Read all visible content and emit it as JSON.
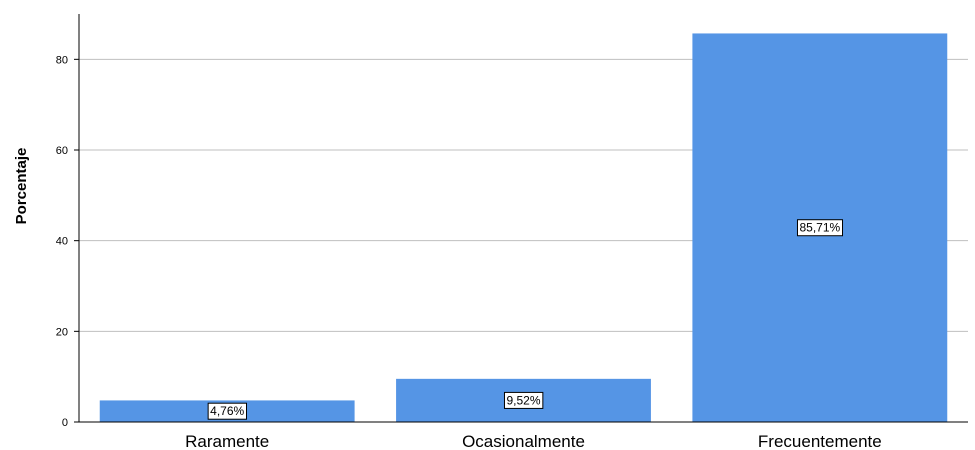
{
  "chart_data": {
    "type": "bar",
    "categories": [
      "Raramente",
      "Ocasionalmente",
      "Frecuentemente"
    ],
    "values": [
      4.76,
      9.52,
      85.71
    ],
    "data_labels": [
      "4,76%",
      "9,52%",
      "85,71%"
    ],
    "title": "",
    "xlabel": "",
    "ylabel": "Porcentaje",
    "ylim": [
      0,
      90
    ],
    "yticks": [
      0,
      20,
      40,
      60,
      80
    ],
    "grid": true,
    "bar_color": "#5595e5",
    "grid_color": "#bfbfbf"
  }
}
